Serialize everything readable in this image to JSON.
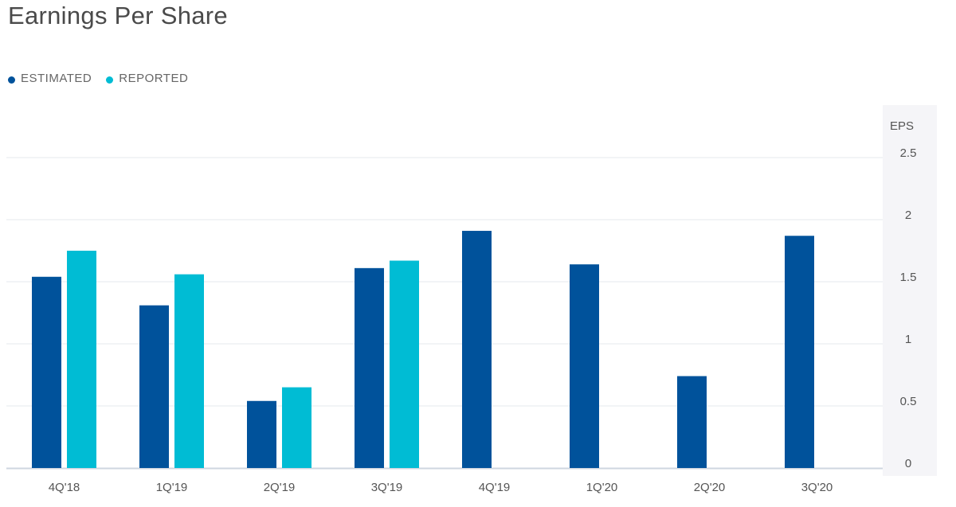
{
  "header": {
    "title": "Earnings Per Share"
  },
  "legend": [
    {
      "label": "ESTIMATED",
      "color": "#00529b"
    },
    {
      "label": "REPORTED",
      "color": "#00bcd4"
    }
  ],
  "chart_data": {
    "type": "bar",
    "title": "Earnings Per Share",
    "ylabel": "EPS",
    "xlabel": "",
    "ylim": [
      0,
      2.5
    ],
    "yticks": [
      "0",
      "0.5",
      "1",
      "1.5",
      "2",
      "2.5"
    ],
    "grid": true,
    "legend_position": "top-left",
    "categories": [
      "4Q'18",
      "1Q'19",
      "2Q'19",
      "3Q'19",
      "4Q'19",
      "1Q'20",
      "2Q'20",
      "3Q'20"
    ],
    "series": [
      {
        "name": "ESTIMATED",
        "color": "#00529b",
        "values": [
          1.54,
          1.31,
          0.54,
          1.61,
          1.91,
          1.64,
          0.74,
          1.87
        ]
      },
      {
        "name": "REPORTED",
        "color": "#00bcd4",
        "values": [
          1.75,
          1.56,
          0.65,
          1.67,
          null,
          null,
          null,
          null
        ]
      }
    ]
  }
}
